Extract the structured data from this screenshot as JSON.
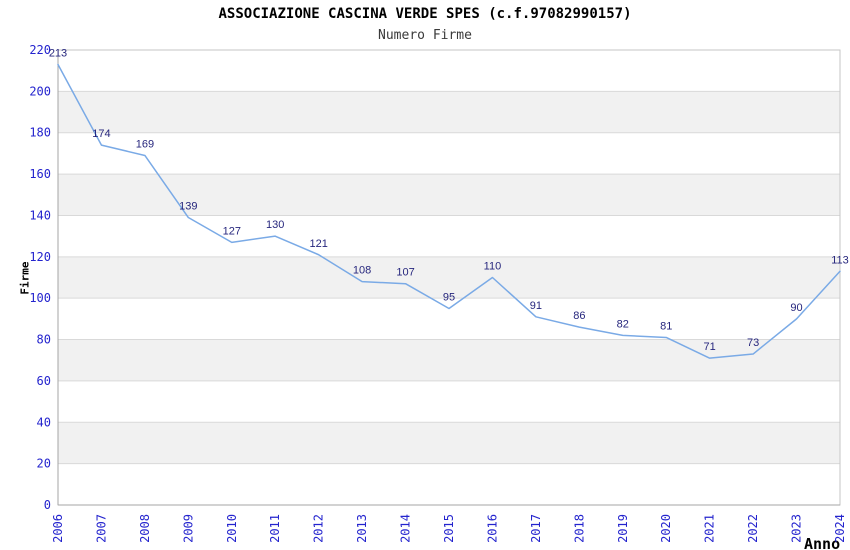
{
  "chart_data": {
    "type": "line",
    "title": "ASSOCIAZIONE CASCINA VERDE SPES (c.f.97082990157)",
    "subtitle": "Numero Firme",
    "xlabel": "Anno",
    "ylabel": "Firme",
    "x": [
      "2006",
      "2007",
      "2008",
      "2009",
      "2010",
      "2011",
      "2012",
      "2013",
      "2014",
      "2015",
      "2016",
      "2017",
      "2018",
      "2019",
      "2020",
      "2021",
      "2022",
      "2023",
      "2024"
    ],
    "series": [
      {
        "name": "Numero Firme",
        "values": [
          213,
          174,
          169,
          139,
          127,
          130,
          121,
          108,
          107,
          95,
          110,
          91,
          86,
          82,
          81,
          71,
          73,
          90,
          113
        ]
      }
    ],
    "yticks": [
      0,
      20,
      40,
      60,
      80,
      100,
      120,
      140,
      160,
      180,
      200,
      220
    ],
    "ylim": [
      0,
      220
    ],
    "ytick_step": 20,
    "grid": "horizontal-bands",
    "legend": "none",
    "point_labels_shown": true,
    "colors": {
      "line": "#7aaae6",
      "tick_label": "#2424ce",
      "value_label": "#26267d",
      "band": "#f1f1f1",
      "gridline": "#d9d9d9",
      "border": "#c6c6c6",
      "axis": "#a5a5a5",
      "title": "#000000",
      "subtitle": "#3a3a3a"
    }
  }
}
